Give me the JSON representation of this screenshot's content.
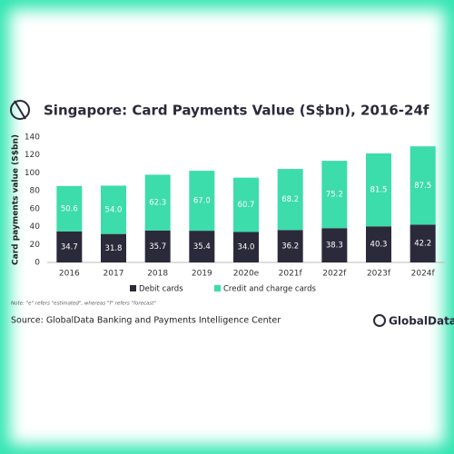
{
  "chart_data": {
    "type": "stacked_bar",
    "title": "Singapore: Card Payments Value (S$bn), 2016-24f",
    "y_label": "Card payments value (S$bn)",
    "categories": [
      "2016",
      "2017",
      "2018",
      "2019",
      "2020e",
      "2021f",
      "2022f",
      "2023f",
      "2024f"
    ],
    "series": [
      {
        "name": "Debit cards",
        "color": "#2b2a3a",
        "values": [
          34.7,
          31.8,
          35.7,
          35.4,
          34.0,
          36.2,
          38.3,
          40.3,
          42.2
        ],
        "value_labels": [
          "34.7",
          "31.8",
          "35.7",
          "35.4",
          "34.0",
          "36.2",
          "38.3",
          "40.3",
          "42.2"
        ]
      },
      {
        "name": "Credit and charge cards",
        "color": "#3ddcab",
        "values": [
          50.6,
          54.0,
          62.3,
          67.0,
          60.7,
          68.2,
          75.2,
          81.5,
          87.5
        ],
        "value_labels": [
          "50.6",
          "54.0",
          "62.3",
          "67.0",
          "60.7",
          "68.2",
          "75.2",
          "81.5",
          "87.5"
        ]
      }
    ],
    "ylim": [
      0,
      140
    ],
    "yticks": [
      0,
      20,
      40,
      60,
      80,
      100,
      120,
      140
    ],
    "grid": false
  },
  "note": "Note: \"e\" refers \"estimated\", whereas \"f\" refers \"forecast\"",
  "source": "Source: GlobalData Banking and Payments Intelligence Center",
  "logo": "GlobalData."
}
